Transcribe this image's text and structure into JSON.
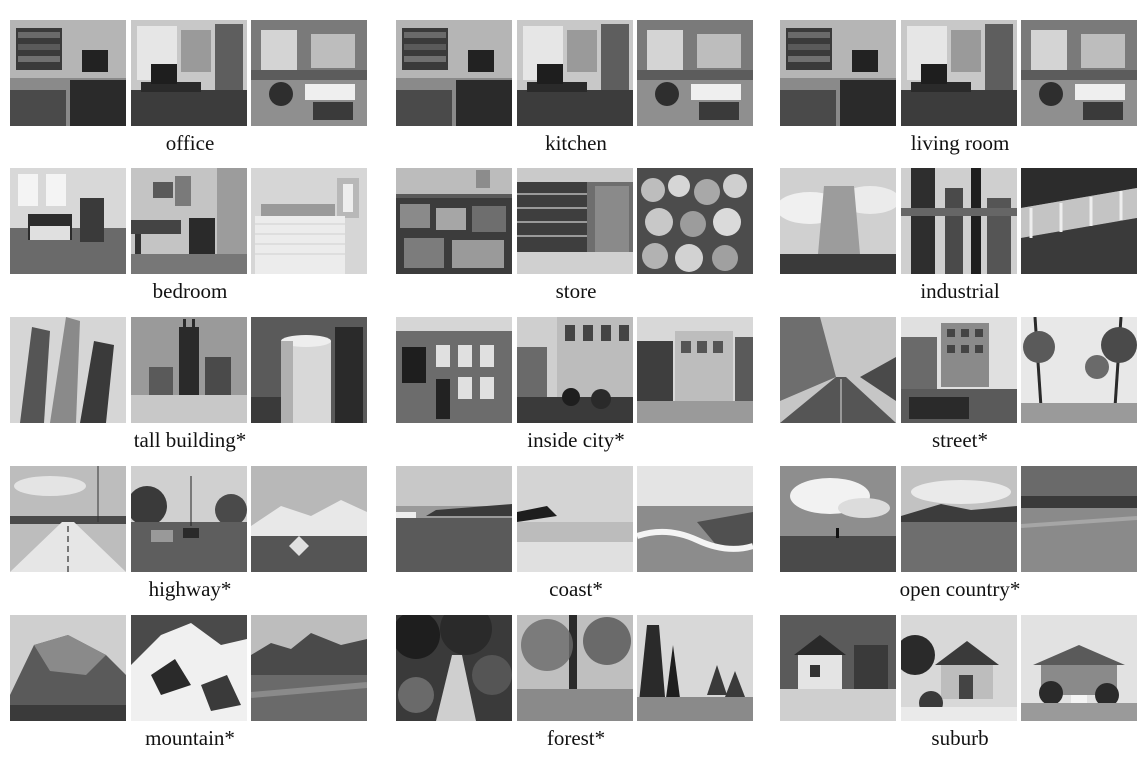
{
  "categories": [
    {
      "label": "office",
      "scene": "indoor-room"
    },
    {
      "label": "kitchen",
      "scene": "indoor-room"
    },
    {
      "label": "living room",
      "scene": "indoor-room"
    },
    {
      "label": "bedroom",
      "scene": "bedroom"
    },
    {
      "label": "store",
      "scene": "indoor-store"
    },
    {
      "label": "industrial",
      "scene": "industrial"
    },
    {
      "label": "tall building*",
      "scene": "tall-building"
    },
    {
      "label": "inside city*",
      "scene": "inside-city"
    },
    {
      "label": "street*",
      "scene": "street"
    },
    {
      "label": "highway*",
      "scene": "highway"
    },
    {
      "label": "coast*",
      "scene": "coast"
    },
    {
      "label": "open country*",
      "scene": "open-country"
    },
    {
      "label": "mountain*",
      "scene": "mountain"
    },
    {
      "label": "forest*",
      "scene": "forest"
    },
    {
      "label": "suburb",
      "scene": "suburb"
    }
  ]
}
